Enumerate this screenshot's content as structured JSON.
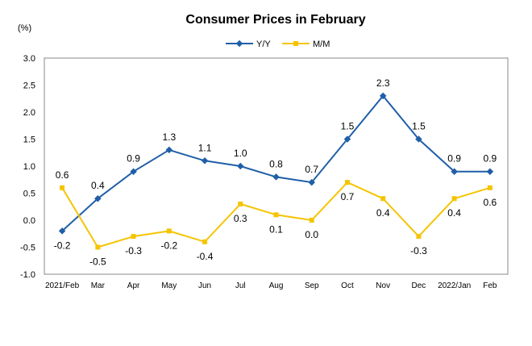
{
  "chart_data": {
    "type": "line",
    "title": "Consumer Prices in February",
    "unit_label": "(%)",
    "categories": [
      "2021/Feb",
      "Mar",
      "Apr",
      "May",
      "Jun",
      "Jul",
      "Aug",
      "Sep",
      "Oct",
      "Nov",
      "Dec",
      "2022/Jan",
      "Feb"
    ],
    "series": [
      {
        "name": "Y/Y",
        "color": "#1f5fa8",
        "marker": "diamond",
        "values": [
          -0.2,
          0.4,
          0.9,
          1.3,
          1.1,
          1.0,
          0.8,
          0.7,
          1.5,
          2.3,
          1.5,
          0.9,
          0.9
        ],
        "labels": [
          "-0.2",
          "0.4",
          "0.9",
          "1.3",
          "1.1",
          "1.0",
          "0.8",
          "0.7",
          "1.5",
          "2.3",
          "1.5",
          "0.9",
          "0.9"
        ]
      },
      {
        "name": "M/M",
        "color": "#f5c400",
        "marker": "square",
        "values": [
          0.6,
          -0.5,
          -0.3,
          -0.2,
          -0.4,
          0.3,
          0.1,
          0.0,
          0.7,
          0.4,
          -0.3,
          0.4,
          0.6
        ],
        "labels": [
          "0.6",
          "-0.5",
          "-0.3",
          "-0.2",
          "-0.4",
          "0.3",
          "0.1",
          "0.0",
          "0.7",
          "0.4",
          "-0.3",
          "0.4",
          "0.6"
        ]
      }
    ],
    "ylim": [
      -1.0,
      3.0
    ],
    "yticks": [
      "-1.0",
      "-0.5",
      "0.0",
      "0.5",
      "1.0",
      "1.5",
      "2.0",
      "2.5",
      "3.0"
    ],
    "grid": false,
    "legend_position": "top-center"
  }
}
